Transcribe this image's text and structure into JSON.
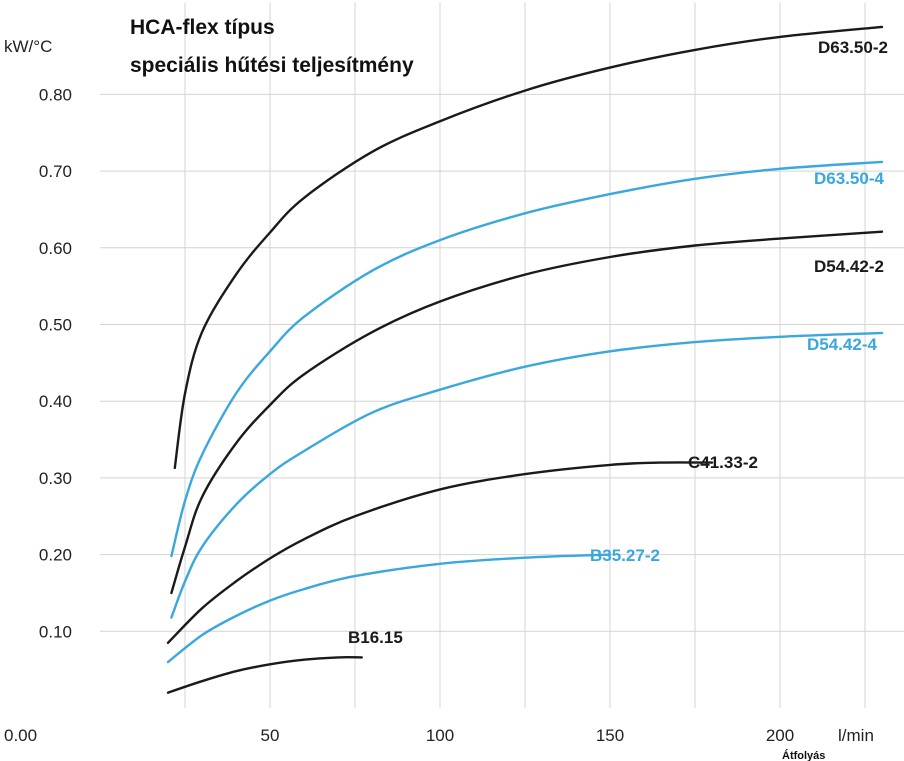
{
  "chart_data": {
    "type": "line",
    "title": [
      "HCA-flex típus",
      "speciális hűtési teljesítmény"
    ],
    "ylabel": "kW/°C",
    "xlabel": "Átfolyás",
    "x_unit_label": "l/min",
    "xlim": [
      0,
      250
    ],
    "ylim": [
      0,
      0.92
    ],
    "x_ticks": [
      {
        "value": 0,
        "label": "0.00"
      },
      {
        "value": 50,
        "label": "50"
      },
      {
        "value": 100,
        "label": "100"
      },
      {
        "value": 150,
        "label": "150"
      },
      {
        "value": 200,
        "label": "200"
      }
    ],
    "y_ticks": [
      {
        "value": 0.1,
        "label": "0.10"
      },
      {
        "value": 0.2,
        "label": "0.20"
      },
      {
        "value": 0.3,
        "label": "0.30"
      },
      {
        "value": 0.4,
        "label": "0.40"
      },
      {
        "value": 0.5,
        "label": "0.50"
      },
      {
        "value": 0.6,
        "label": "0.60"
      },
      {
        "value": 0.7,
        "label": "0.70"
      },
      {
        "value": 0.8,
        "label": "0.80"
      }
    ],
    "grid": true,
    "series": [
      {
        "name": "D63.50-2",
        "color": "#1a1a1a",
        "x": [
          22,
          25,
          30,
          40,
          50,
          60,
          80,
          100,
          125,
          150,
          175,
          200,
          230
        ],
        "y": [
          0.313,
          0.41,
          0.49,
          0.565,
          0.62,
          0.665,
          0.725,
          0.765,
          0.805,
          0.835,
          0.858,
          0.875,
          0.888
        ]
      },
      {
        "name": "D63.50-4",
        "color": "#3aa7dd",
        "x": [
          21,
          25,
          30,
          40,
          50,
          60,
          80,
          100,
          125,
          150,
          175,
          200,
          230
        ],
        "y": [
          0.198,
          0.27,
          0.33,
          0.41,
          0.465,
          0.51,
          0.57,
          0.61,
          0.645,
          0.67,
          0.69,
          0.703,
          0.712
        ]
      },
      {
        "name": "D54.42-2",
        "color": "#1a1a1a",
        "x": [
          21,
          25,
          30,
          40,
          50,
          60,
          80,
          100,
          125,
          150,
          175,
          200,
          230
        ],
        "y": [
          0.15,
          0.21,
          0.275,
          0.345,
          0.395,
          0.435,
          0.49,
          0.53,
          0.565,
          0.588,
          0.603,
          0.612,
          0.621
        ]
      },
      {
        "name": "D54.42-4",
        "color": "#3aa7dd",
        "x": [
          21,
          25,
          30,
          40,
          50,
          60,
          80,
          100,
          125,
          150,
          175,
          200,
          230
        ],
        "y": [
          0.118,
          0.165,
          0.21,
          0.265,
          0.305,
          0.335,
          0.385,
          0.415,
          0.445,
          0.465,
          0.477,
          0.484,
          0.489
        ]
      },
      {
        "name": "C41.33-2",
        "color": "#1a1a1a",
        "x": [
          20,
          30,
          40,
          50,
          60,
          75,
          100,
          125,
          150,
          165,
          180
        ],
        "y": [
          0.085,
          0.13,
          0.165,
          0.195,
          0.22,
          0.25,
          0.285,
          0.305,
          0.317,
          0.32,
          0.32
        ]
      },
      {
        "name": "B35.27-2",
        "color": "#3aa7dd",
        "x": [
          20,
          30,
          40,
          50,
          60,
          75,
          100,
          125,
          150
        ],
        "y": [
          0.06,
          0.095,
          0.12,
          0.14,
          0.155,
          0.172,
          0.188,
          0.196,
          0.2
        ]
      },
      {
        "name": "B16.15",
        "color": "#1a1a1a",
        "x": [
          20,
          30,
          40,
          50,
          60,
          70,
          77
        ],
        "y": [
          0.02,
          0.035,
          0.048,
          0.057,
          0.063,
          0.066,
          0.066
        ]
      }
    ]
  }
}
